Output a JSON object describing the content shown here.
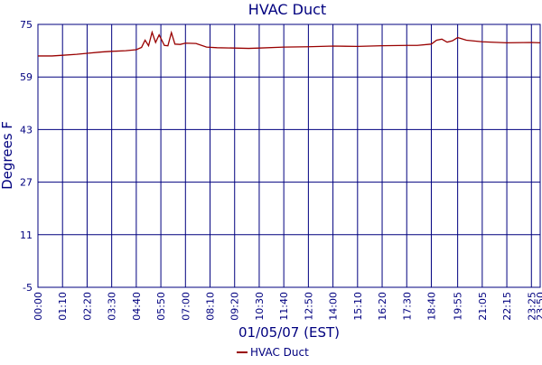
{
  "chart_data": {
    "type": "line",
    "title": "HVAC Duct",
    "x_label": "01/05/07 (EST)",
    "y_label": "Degrees F",
    "x": [
      "00:00",
      "00:40",
      "01:10",
      "01:50",
      "02:20",
      "03:00",
      "03:30",
      "04:10",
      "04:40",
      "04:55",
      "05:05",
      "05:15",
      "05:25",
      "05:35",
      "05:45",
      "06:00",
      "06:10",
      "06:20",
      "06:30",
      "06:45",
      "07:00",
      "07:30",
      "08:00",
      "08:30",
      "09:20",
      "10:00",
      "10:30",
      "11:40",
      "12:50",
      "14:00",
      "15:10",
      "16:20",
      "17:30",
      "18:00",
      "18:40",
      "18:55",
      "19:10",
      "19:25",
      "19:40",
      "19:55",
      "20:20",
      "21:05",
      "22:15",
      "23:25",
      "23:50"
    ],
    "series": [
      {
        "name": "HVAC Duct",
        "color": "#990000",
        "values": [
          65.4,
          65.4,
          65.6,
          65.9,
          66.2,
          66.6,
          66.8,
          67.0,
          67.3,
          68.0,
          70.2,
          68.5,
          72.6,
          69.5,
          71.8,
          68.6,
          68.5,
          72.5,
          69.0,
          68.9,
          69.3,
          69.2,
          68.1,
          67.9,
          67.8,
          67.7,
          67.8,
          68.1,
          68.2,
          68.4,
          68.3,
          68.5,
          68.6,
          68.6,
          69.0,
          70.2,
          70.5,
          69.6,
          70.0,
          71.0,
          70.2,
          69.7,
          69.4,
          69.5,
          69.4
        ]
      }
    ],
    "xlim": [
      "00:00",
      "23:50"
    ],
    "xticks": [
      "00:00",
      "01:10",
      "02:20",
      "03:30",
      "04:40",
      "05:50",
      "07:00",
      "08:10",
      "09:20",
      "10:30",
      "11:40",
      "12:50",
      "14:00",
      "15:10",
      "16:20",
      "17:30",
      "18:40",
      "19:55",
      "21:05",
      "22:15",
      "23:25",
      "23:50"
    ],
    "ylim": [
      -5,
      75
    ],
    "yticks": [
      -5,
      11,
      27,
      43,
      59,
      75
    ],
    "grid": true
  }
}
